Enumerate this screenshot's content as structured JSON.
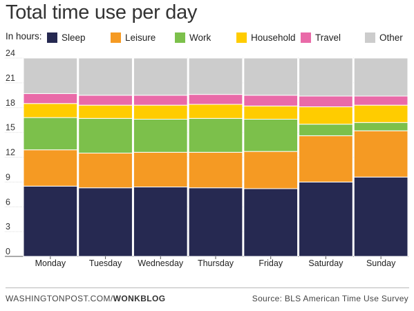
{
  "title": "Total time use per day",
  "legend": {
    "prefix": "In hours:",
    "items": [
      {
        "label": "Sleep",
        "color": "#262951"
      },
      {
        "label": "Leisure",
        "color": "#f59a23"
      },
      {
        "label": "Work",
        "color": "#7cc04b"
      },
      {
        "label": "Household",
        "color": "#ffcc00"
      },
      {
        "label": "Travel",
        "color": "#e96aa8"
      },
      {
        "label": "Other",
        "color": "#cccccc"
      }
    ]
  },
  "footer": {
    "site": "WASHINGTONPOST.COM/",
    "section": "WONKBLOG",
    "source": "Source: BLS American Time Use Survey"
  },
  "chart_data": {
    "type": "bar",
    "stacked": true,
    "categories": [
      "Monday",
      "Tuesday",
      "Wednesday",
      "Thursday",
      "Friday",
      "Saturday",
      "Sunday"
    ],
    "ylim": [
      0,
      24
    ],
    "yticks": [
      0,
      3,
      6,
      9,
      12,
      15,
      18,
      21,
      24
    ],
    "grid": true,
    "legend_position": "top",
    "series": [
      {
        "name": "Sleep",
        "color": "#262951",
        "values": [
          8.5,
          8.3,
          8.4,
          8.3,
          8.2,
          9.0,
          9.6
        ]
      },
      {
        "name": "Leisure",
        "color": "#f59a23",
        "values": [
          4.4,
          4.2,
          4.2,
          4.3,
          4.5,
          5.6,
          5.6
        ]
      },
      {
        "name": "Work",
        "color": "#7cc04b",
        "values": [
          3.9,
          4.2,
          4.0,
          4.1,
          3.9,
          1.4,
          1.0
        ]
      },
      {
        "name": "Household",
        "color": "#ffcc00",
        "values": [
          1.7,
          1.6,
          1.7,
          1.7,
          1.6,
          2.1,
          2.1
        ]
      },
      {
        "name": "Travel",
        "color": "#e96aa8",
        "values": [
          1.2,
          1.2,
          1.2,
          1.2,
          1.3,
          1.3,
          1.1
        ]
      },
      {
        "name": "Other",
        "color": "#cccccc",
        "values": [
          4.3,
          4.5,
          4.5,
          4.4,
          4.5,
          4.6,
          4.6
        ]
      }
    ]
  }
}
